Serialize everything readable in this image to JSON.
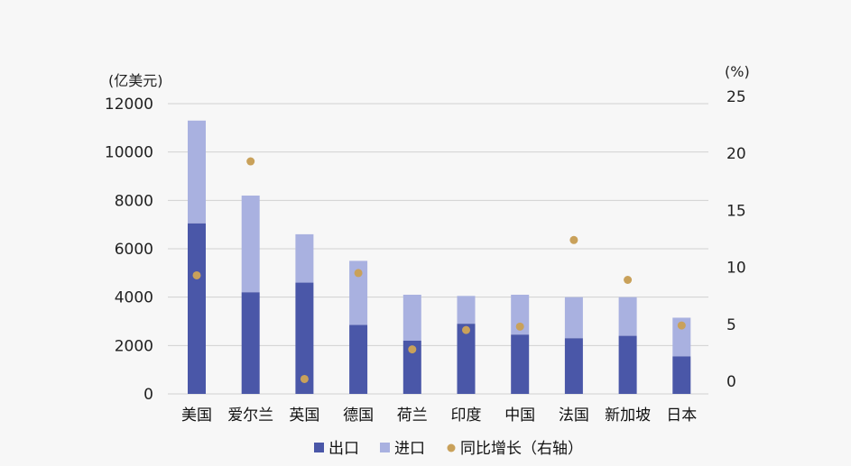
{
  "chart_data": {
    "type": "bar",
    "stacked": true,
    "left_axis_unit": "(亿美元)",
    "right_axis_unit": "(%)",
    "left_ylim": [
      0,
      12000
    ],
    "right_ylim": [
      0,
      25
    ],
    "left_ticks": [
      "0",
      "2000",
      "4000",
      "6000",
      "8000",
      "10000",
      "12000"
    ],
    "right_ticks": [
      "0",
      "5",
      "10",
      "15",
      "20",
      "25"
    ],
    "categories": [
      "美国",
      "爱尔兰",
      "英国",
      "德国",
      "荷兰",
      "印度",
      "中国",
      "法国",
      "新加坡",
      "日本"
    ],
    "series": [
      {
        "name": "出口",
        "kind": "bar",
        "axis": "left",
        "color": "#4a57a8",
        "values": [
          7050,
          4200,
          4600,
          2850,
          2200,
          2900,
          2450,
          2300,
          2400,
          1550
        ]
      },
      {
        "name": "进口",
        "kind": "bar",
        "axis": "left",
        "color": "#a9b1e0",
        "values": [
          4250,
          4000,
          2000,
          2650,
          1900,
          1150,
          1650,
          1700,
          1600,
          1600
        ]
      },
      {
        "name": "同比增长（右轴）",
        "kind": "scatter",
        "axis": "right",
        "color": "#c9a15a",
        "values": [
          9.3,
          19.3,
          0.2,
          9.5,
          2.8,
          4.5,
          4.8,
          12.4,
          8.9,
          4.9
        ]
      }
    ],
    "grid": true,
    "legend_position": "bottom"
  }
}
